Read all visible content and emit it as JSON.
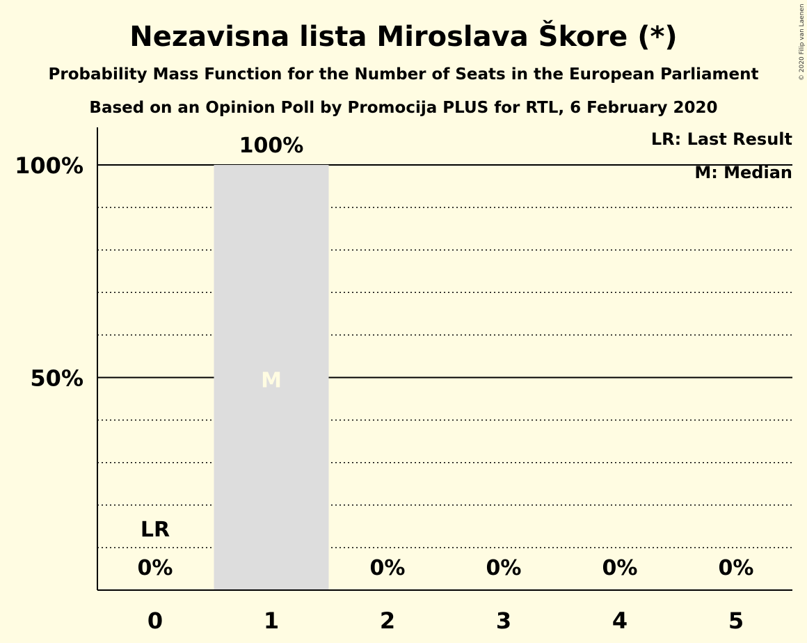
{
  "header": {
    "title": "Nezavisna lista Miroslava Škore (*)",
    "subtitle": "Probability Mass Function for the Number of Seats in the European Parliament",
    "subtitle2": "Based on an Opinion Poll by Promocija PLUS for RTL, 6 February 2020",
    "copyright": "© 2020 Filip van Laenen"
  },
  "legend": {
    "last_result": "LR: Last Result",
    "median": "M: Median"
  },
  "markers": {
    "last_result_label": "LR",
    "median_label": "M"
  },
  "colors": {
    "background": "#FFFCE2",
    "bar": "#DDDDDD",
    "axis": "#000000"
  },
  "chart_data": {
    "type": "bar",
    "categories": [
      "0",
      "1",
      "2",
      "3",
      "4",
      "5"
    ],
    "values": [
      0,
      100,
      0,
      0,
      0,
      0
    ],
    "data_labels": [
      "0%",
      "100%",
      "0%",
      "0%",
      "0%",
      "0%"
    ],
    "y_ticks": [
      {
        "value": 50,
        "label": "50%"
      },
      {
        "value": 100,
        "label": "100%"
      }
    ],
    "ylim": [
      0,
      110
    ],
    "minor_gridlines": [
      10,
      20,
      30,
      40,
      60,
      70,
      80,
      90
    ],
    "median_category": "1",
    "last_result_category": "0",
    "grid": true,
    "legend_position": "top-right"
  }
}
